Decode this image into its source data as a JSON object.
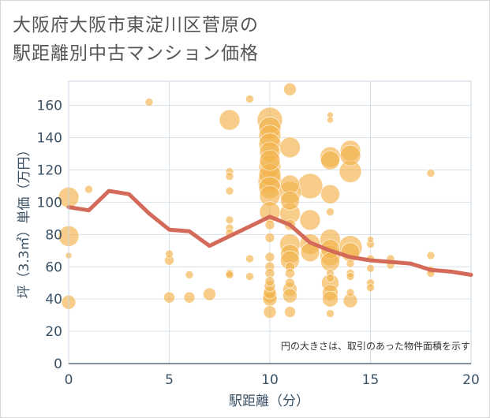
{
  "chart_title": {
    "line1": "大阪府大阪市東淀川区菅原の",
    "line2": "駅距離別中古マンション価格"
  },
  "colors": {
    "bubble": "#f2b24a",
    "line": "#d46a5a",
    "grid": "#c9d6e0",
    "text": "#3b5266"
  },
  "chart_data": {
    "type": "scatter",
    "xlabel": "駅距離（分）",
    "ylabel": "坪（3.3㎡）単価（万円）",
    "xlim": [
      0,
      20
    ],
    "ylim": [
      0,
      175
    ],
    "xticks": [
      "0",
      "5",
      "10",
      "15",
      "20"
    ],
    "yticks": [
      "0",
      "20",
      "40",
      "60",
      "80",
      "100",
      "120",
      "140",
      "160"
    ],
    "note": "円の大きさは、取引のあった物件面積を示す",
    "grid": true,
    "bubbles": [
      {
        "x": 0,
        "y": 103,
        "s": 13
      },
      {
        "x": 0,
        "y": 79,
        "s": 13
      },
      {
        "x": 0,
        "y": 67,
        "s": 4
      },
      {
        "x": 0,
        "y": 38,
        "s": 9
      },
      {
        "x": 1,
        "y": 108,
        "s": 5
      },
      {
        "x": 4,
        "y": 162,
        "s": 5
      },
      {
        "x": 5,
        "y": 68,
        "s": 5
      },
      {
        "x": 5,
        "y": 64,
        "s": 6
      },
      {
        "x": 5,
        "y": 41,
        "s": 7
      },
      {
        "x": 6,
        "y": 55,
        "s": 5
      },
      {
        "x": 6,
        "y": 41,
        "s": 7
      },
      {
        "x": 7,
        "y": 43,
        "s": 8
      },
      {
        "x": 8,
        "y": 151,
        "s": 13
      },
      {
        "x": 8,
        "y": 119,
        "s": 5
      },
      {
        "x": 8,
        "y": 116,
        "s": 5
      },
      {
        "x": 8,
        "y": 107,
        "s": 5
      },
      {
        "x": 8,
        "y": 89,
        "s": 5
      },
      {
        "x": 8,
        "y": 84,
        "s": 5
      },
      {
        "x": 8,
        "y": 81,
        "s": 5
      },
      {
        "x": 8,
        "y": 56,
        "s": 5
      },
      {
        "x": 8,
        "y": 55,
        "s": 5
      },
      {
        "x": 9,
        "y": 164,
        "s": 5
      },
      {
        "x": 9,
        "y": 65,
        "s": 5
      },
      {
        "x": 9,
        "y": 54,
        "s": 5
      },
      {
        "x": 10,
        "y": 151,
        "s": 16
      },
      {
        "x": 10,
        "y": 146,
        "s": 14
      },
      {
        "x": 10,
        "y": 141,
        "s": 14
      },
      {
        "x": 10,
        "y": 136,
        "s": 14
      },
      {
        "x": 10,
        "y": 131,
        "s": 13
      },
      {
        "x": 10,
        "y": 126,
        "s": 13
      },
      {
        "x": 10,
        "y": 122,
        "s": 14
      },
      {
        "x": 10,
        "y": 117,
        "s": 14
      },
      {
        "x": 10,
        "y": 113,
        "s": 15
      },
      {
        "x": 10,
        "y": 109,
        "s": 14
      },
      {
        "x": 10,
        "y": 104,
        "s": 13
      },
      {
        "x": 10,
        "y": 94,
        "s": 13
      },
      {
        "x": 10,
        "y": 86,
        "s": 6
      },
      {
        "x": 10,
        "y": 78,
        "s": 6
      },
      {
        "x": 10,
        "y": 66,
        "s": 6
      },
      {
        "x": 10,
        "y": 60,
        "s": 6
      },
      {
        "x": 10,
        "y": 56,
        "s": 6
      },
      {
        "x": 10,
        "y": 51,
        "s": 6
      },
      {
        "x": 10,
        "y": 48,
        "s": 7
      },
      {
        "x": 10,
        "y": 44,
        "s": 8
      },
      {
        "x": 10,
        "y": 42,
        "s": 9
      },
      {
        "x": 10,
        "y": 40,
        "s": 9
      },
      {
        "x": 10,
        "y": 32,
        "s": 8
      },
      {
        "x": 11,
        "y": 170,
        "s": 8
      },
      {
        "x": 11,
        "y": 134,
        "s": 13
      },
      {
        "x": 11,
        "y": 111,
        "s": 12
      },
      {
        "x": 11,
        "y": 106,
        "s": 14
      },
      {
        "x": 11,
        "y": 101,
        "s": 12
      },
      {
        "x": 11,
        "y": 93,
        "s": 13
      },
      {
        "x": 11,
        "y": 86,
        "s": 7
      },
      {
        "x": 11,
        "y": 74,
        "s": 13
      },
      {
        "x": 11,
        "y": 68,
        "s": 12
      },
      {
        "x": 11,
        "y": 64,
        "s": 12
      },
      {
        "x": 11,
        "y": 60,
        "s": 6
      },
      {
        "x": 11,
        "y": 56,
        "s": 6
      },
      {
        "x": 11,
        "y": 50,
        "s": 6
      },
      {
        "x": 11,
        "y": 46,
        "s": 9
      },
      {
        "x": 11,
        "y": 42,
        "s": 9
      },
      {
        "x": 11,
        "y": 32,
        "s": 7
      },
      {
        "x": 12,
        "y": 110,
        "s": 16
      },
      {
        "x": 12,
        "y": 89,
        "s": 13
      },
      {
        "x": 12,
        "y": 74,
        "s": 13
      },
      {
        "x": 12,
        "y": 69,
        "s": 12
      },
      {
        "x": 13,
        "y": 154,
        "s": 4
      },
      {
        "x": 13,
        "y": 151,
        "s": 4
      },
      {
        "x": 13,
        "y": 128,
        "s": 13
      },
      {
        "x": 13,
        "y": 126,
        "s": 12
      },
      {
        "x": 13,
        "y": 105,
        "s": 12
      },
      {
        "x": 13,
        "y": 94,
        "s": 5
      },
      {
        "x": 13,
        "y": 77,
        "s": 13
      },
      {
        "x": 13,
        "y": 71,
        "s": 12
      },
      {
        "x": 13,
        "y": 67,
        "s": 13
      },
      {
        "x": 13,
        "y": 63,
        "s": 12
      },
      {
        "x": 13,
        "y": 56,
        "s": 5
      },
      {
        "x": 13,
        "y": 53,
        "s": 5
      },
      {
        "x": 13,
        "y": 50,
        "s": 11
      },
      {
        "x": 13,
        "y": 44,
        "s": 10
      },
      {
        "x": 13,
        "y": 40,
        "s": 10
      },
      {
        "x": 13,
        "y": 31,
        "s": 5
      },
      {
        "x": 14,
        "y": 132,
        "s": 13
      },
      {
        "x": 14,
        "y": 129,
        "s": 13
      },
      {
        "x": 14,
        "y": 119,
        "s": 14
      },
      {
        "x": 14,
        "y": 72,
        "s": 15
      },
      {
        "x": 14,
        "y": 69,
        "s": 12
      },
      {
        "x": 14,
        "y": 62,
        "s": 5
      },
      {
        "x": 14,
        "y": 56,
        "s": 5
      },
      {
        "x": 14,
        "y": 54,
        "s": 5
      },
      {
        "x": 14,
        "y": 44,
        "s": 5
      },
      {
        "x": 14,
        "y": 39,
        "s": 9
      },
      {
        "x": 15,
        "y": 77,
        "s": 4
      },
      {
        "x": 15,
        "y": 74,
        "s": 5
      },
      {
        "x": 15,
        "y": 65,
        "s": 5
      },
      {
        "x": 15,
        "y": 59,
        "s": 5
      },
      {
        "x": 15,
        "y": 50,
        "s": 5
      },
      {
        "x": 15,
        "y": 47,
        "s": 5
      },
      {
        "x": 16,
        "y": 65,
        "s": 5
      },
      {
        "x": 16,
        "y": 61,
        "s": 5
      },
      {
        "x": 18,
        "y": 118,
        "s": 5
      },
      {
        "x": 18,
        "y": 67,
        "s": 5
      },
      {
        "x": 18,
        "y": 58,
        "s": 5
      },
      {
        "x": 18,
        "y": 56,
        "s": 5
      }
    ],
    "series": [
      {
        "x": [
          0,
          1,
          2,
          3,
          4,
          5,
          6,
          7,
          8,
          9,
          10,
          11,
          12,
          13,
          14,
          15,
          16,
          17,
          18,
          19,
          20
        ],
        "y": [
          97,
          95,
          107,
          105,
          93,
          83,
          82,
          73,
          79,
          85,
          91,
          86,
          75,
          70,
          66,
          64,
          63,
          62,
          58,
          57,
          55
        ]
      }
    ]
  }
}
